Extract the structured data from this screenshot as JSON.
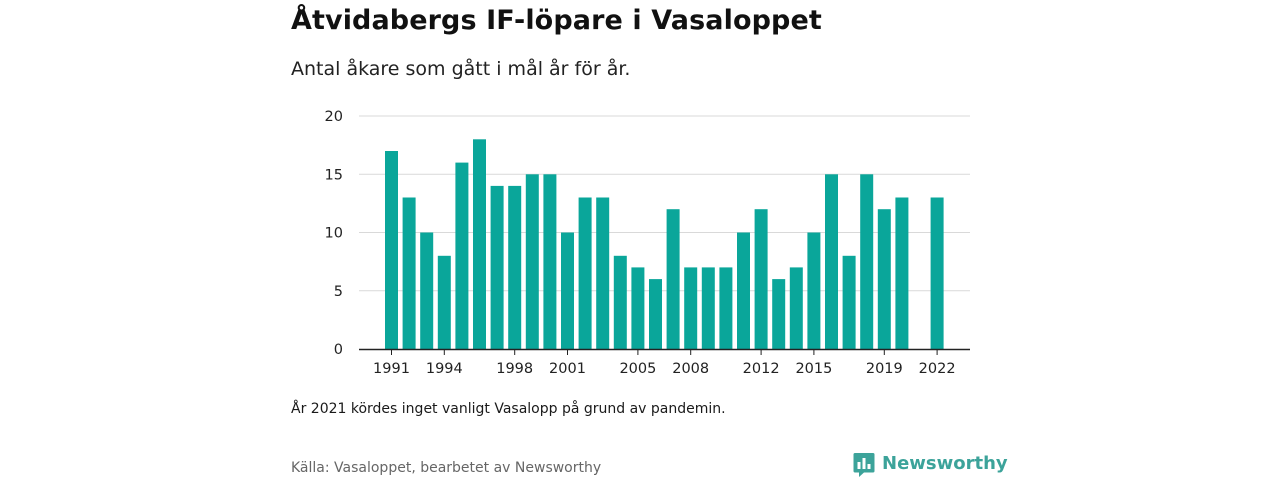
{
  "header": {
    "title": "Åtvidabergs IF-löpare i Vasaloppet",
    "subtitle": "Antal åkare som gått i mål år för år."
  },
  "footer": {
    "note": "År 2021 kördes inget vanligt Vasalopp på grund av pandemin.",
    "source": "Källa: Vasaloppet, bearbetet av Newsworthy",
    "brand": "Newsworthy"
  },
  "colors": {
    "bar": "#0aa69a",
    "brand": "#3ca39a",
    "grid": "#d9d9d9",
    "axis": "#222222"
  },
  "icons": {
    "brand_logo": "bar-chart-speech-bubble-icon"
  },
  "chart_data": {
    "type": "bar",
    "x": [
      1991,
      1992,
      1993,
      1994,
      1995,
      1996,
      1997,
      1998,
      1999,
      2000,
      2001,
      2002,
      2003,
      2004,
      2005,
      2006,
      2007,
      2008,
      2009,
      2010,
      2011,
      2012,
      2013,
      2014,
      2015,
      2016,
      2017,
      2018,
      2019,
      2020,
      2021,
      2022
    ],
    "values": [
      17,
      13,
      10,
      8,
      16,
      18,
      14,
      14,
      15,
      15,
      10,
      13,
      13,
      8,
      7,
      6,
      12,
      7,
      7,
      7,
      10,
      12,
      6,
      7,
      10,
      15,
      8,
      15,
      12,
      13,
      null,
      13
    ],
    "ylim": [
      0,
      20
    ],
    "yticks": [
      0,
      5,
      10,
      15,
      20
    ],
    "xticks": [
      1991,
      1994,
      1998,
      2001,
      2005,
      2008,
      2012,
      2015,
      2019,
      2022
    ],
    "grid": true,
    "legend": "none"
  }
}
